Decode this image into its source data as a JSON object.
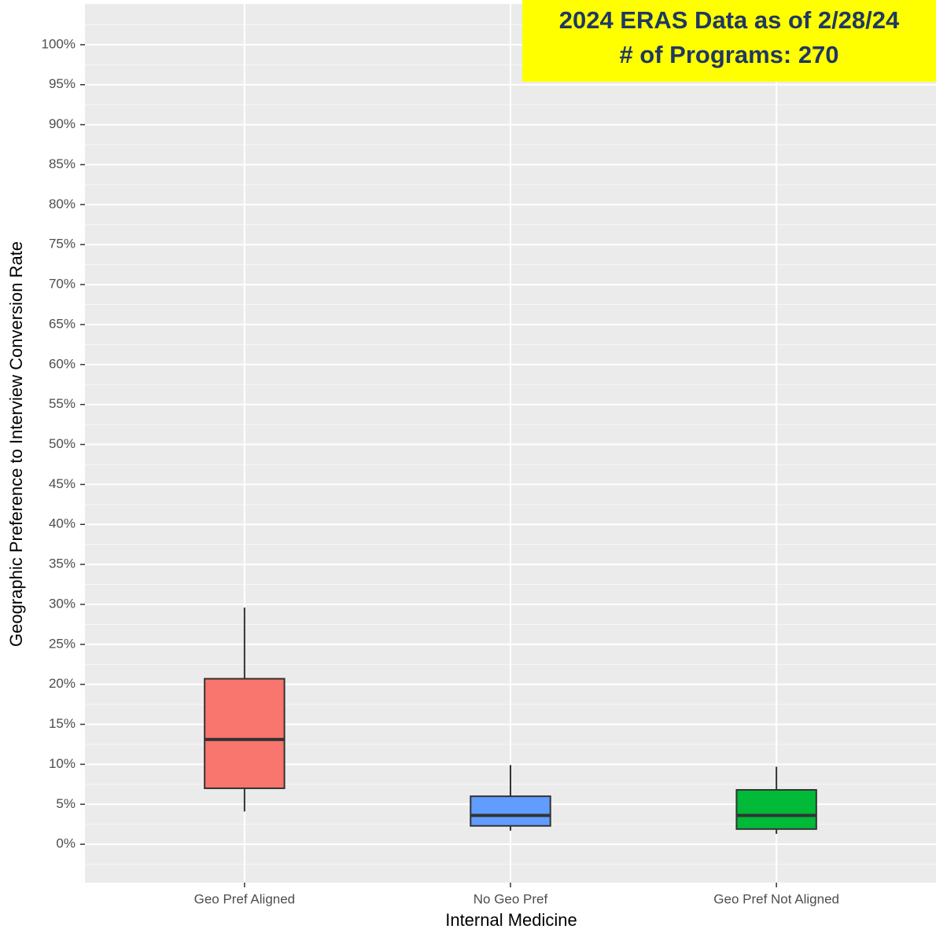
{
  "chart_data": {
    "type": "box",
    "y_label": "Geographic Preference to Interview Conversion Rate",
    "x_label": "Internal Medicine",
    "annotation": [
      "2024 ERAS Data as of 2/28/24",
      "# of Programs: 270"
    ],
    "categories": [
      "Geo Pref Aligned",
      "No Geo Pref",
      "Geo Pref Not Aligned"
    ],
    "boxes": [
      {
        "low": 4.1,
        "q1": 7.0,
        "median": 13.1,
        "q3": 20.7,
        "high": 29.6,
        "color": "#f8766d"
      },
      {
        "low": 1.7,
        "q1": 2.3,
        "median": 3.6,
        "q3": 6.0,
        "high": 9.9,
        "color": "#619cff"
      },
      {
        "low": 1.3,
        "q1": 1.9,
        "median": 3.6,
        "q3": 6.8,
        "high": 9.7,
        "color": "#00ba38"
      }
    ],
    "ylim": [
      -4.8,
      105.1
    ],
    "yticks": [
      {
        "value": 0,
        "label": "0%"
      },
      {
        "value": 5,
        "label": "5%"
      },
      {
        "value": 10,
        "label": "10%"
      },
      {
        "value": 15,
        "label": "15%"
      },
      {
        "value": 20,
        "label": "20%"
      },
      {
        "value": 25,
        "label": "25%"
      },
      {
        "value": 30,
        "label": "30%"
      },
      {
        "value": 35,
        "label": "35%"
      },
      {
        "value": 40,
        "label": "40%"
      },
      {
        "value": 45,
        "label": "45%"
      },
      {
        "value": 50,
        "label": "50%"
      },
      {
        "value": 55,
        "label": "55%"
      },
      {
        "value": 60,
        "label": "60%"
      },
      {
        "value": 65,
        "label": "65%"
      },
      {
        "value": 70,
        "label": "70%"
      },
      {
        "value": 75,
        "label": "75%"
      },
      {
        "value": 80,
        "label": "80%"
      },
      {
        "value": 85,
        "label": "85%"
      },
      {
        "value": 90,
        "label": "90%"
      },
      {
        "value": 95,
        "label": "95%"
      },
      {
        "value": 100,
        "label": "100%"
      }
    ],
    "grid": true
  }
}
